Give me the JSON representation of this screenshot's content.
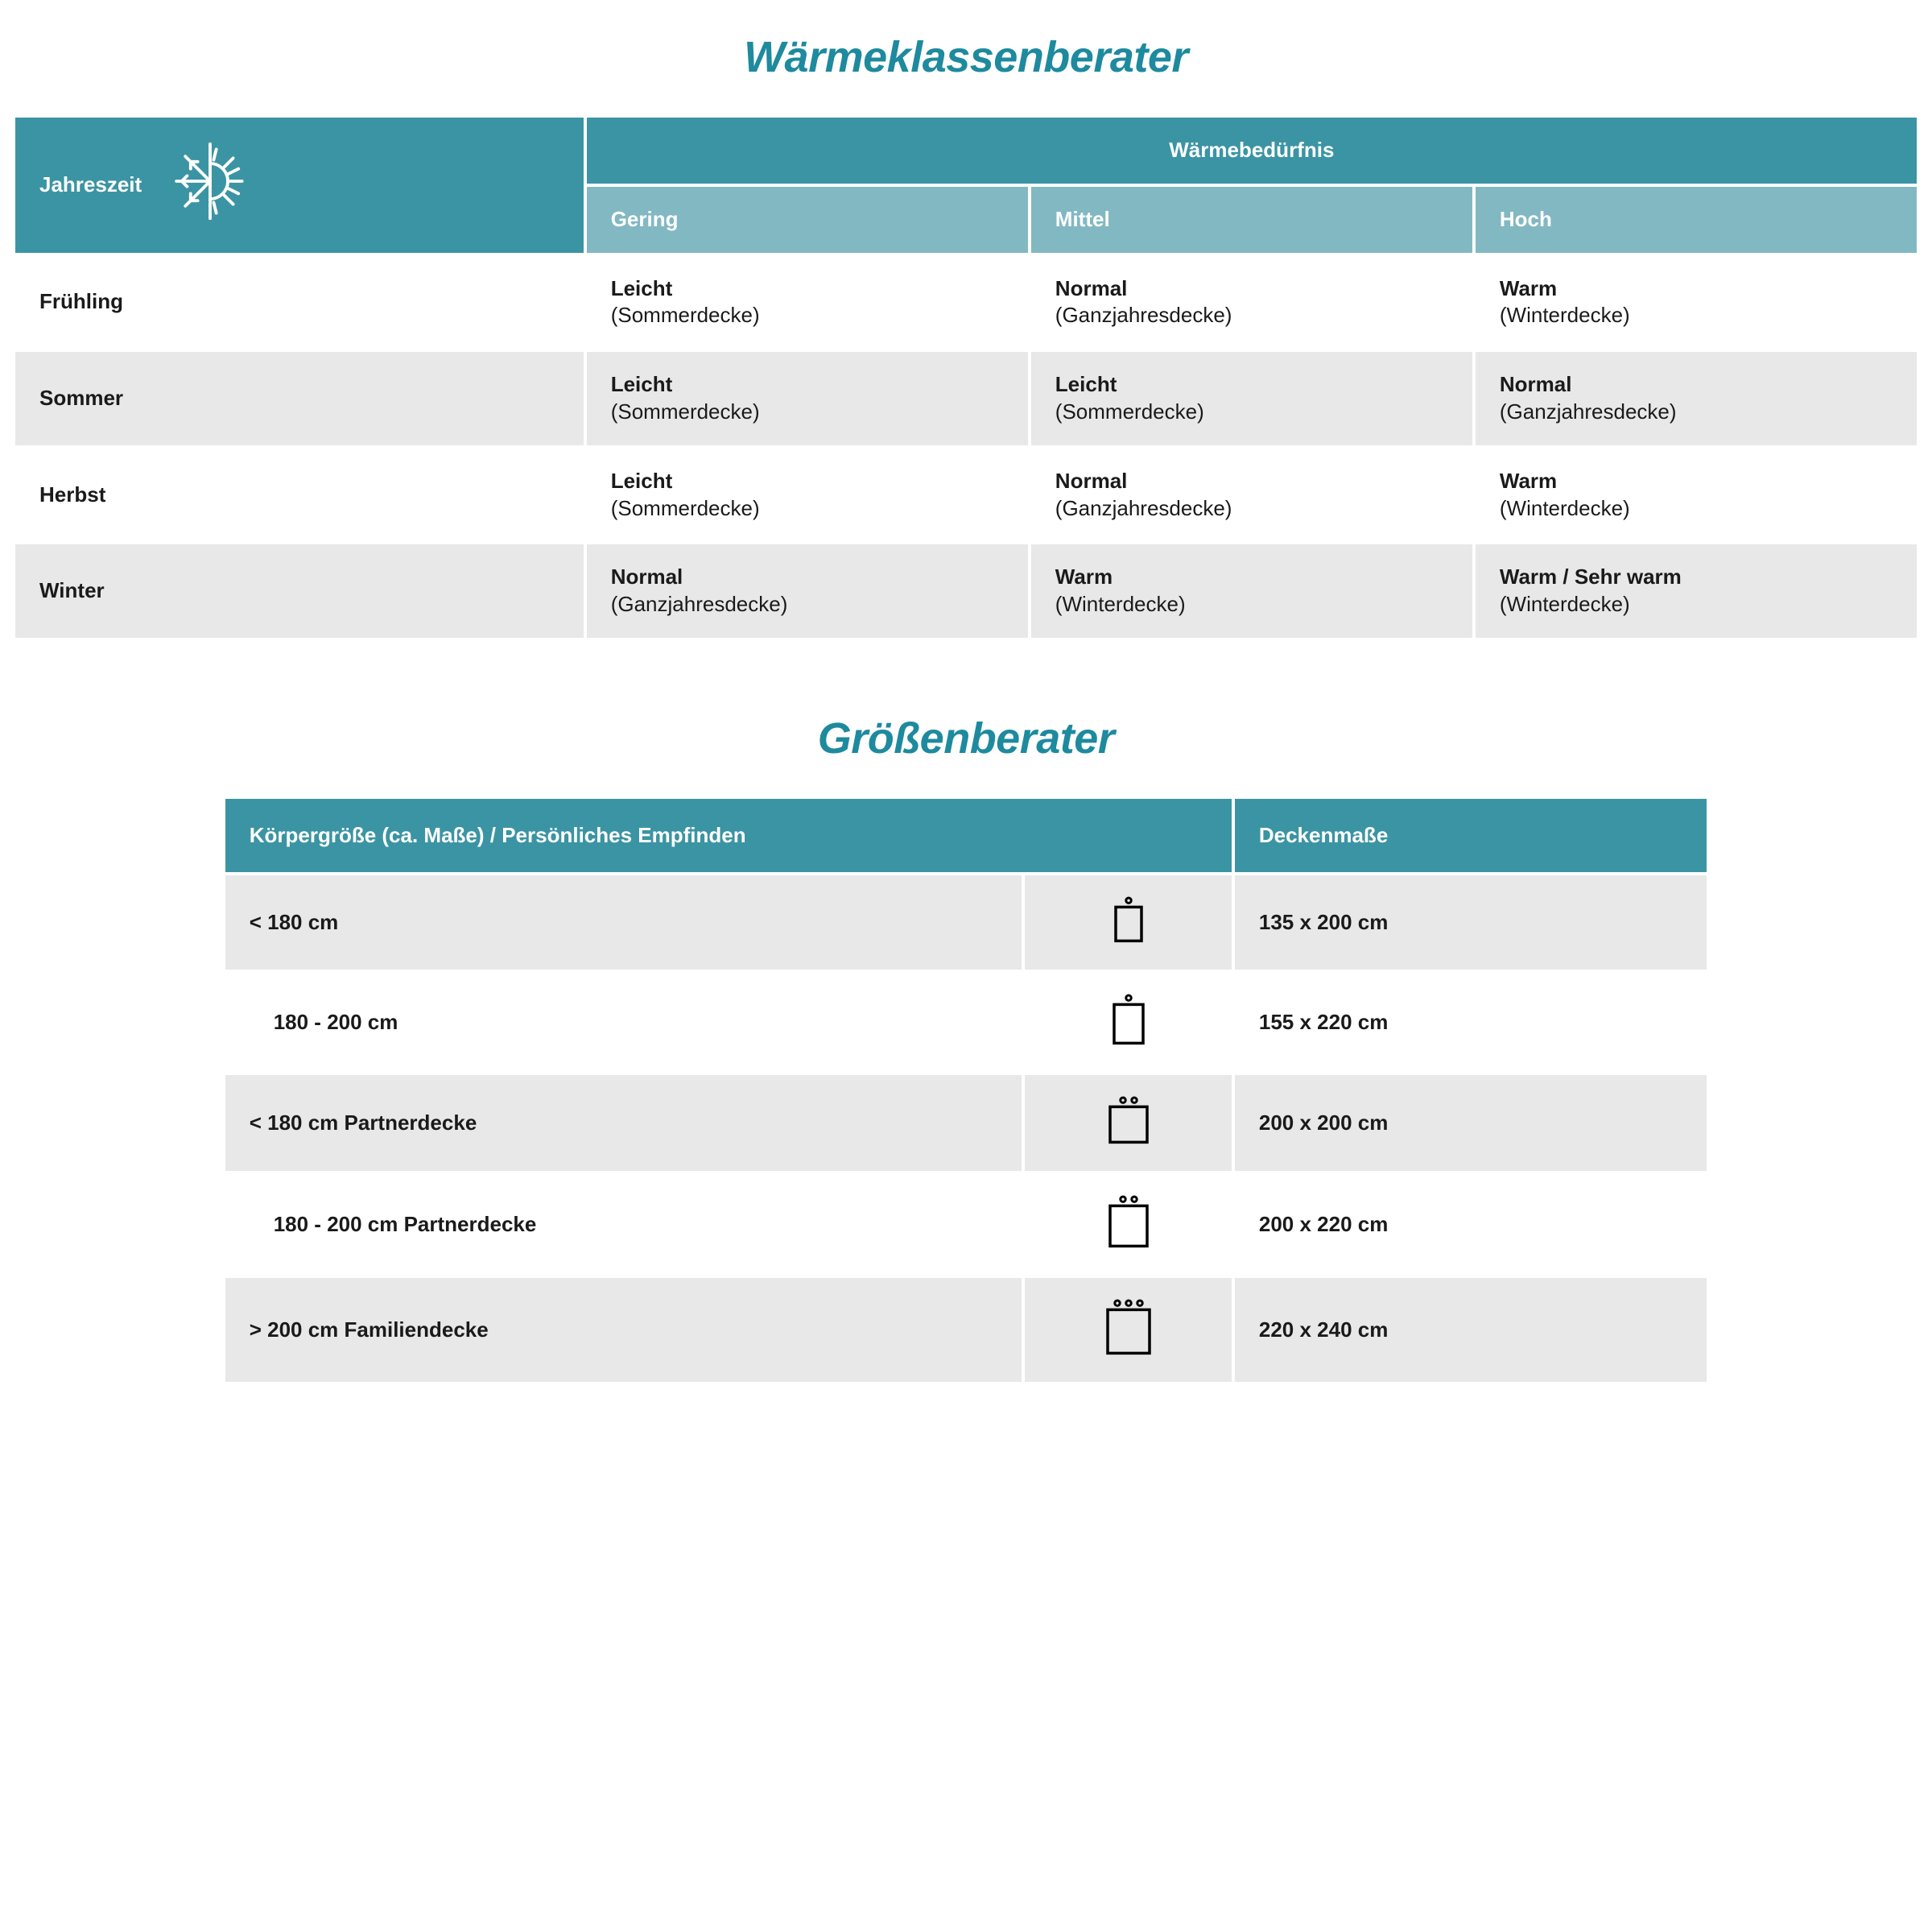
{
  "colors": {
    "title": "#1e8a9e",
    "header_dark": "#3b94a3",
    "header_light": "#82b8c2",
    "row_alt": "#e8e8e8",
    "row_plain": "#ffffff",
    "text": "#1a1a1a"
  },
  "warmth": {
    "title": "Wärmeklassenberater",
    "season_label": "Jahreszeit",
    "need_label": "Wärmebedürfnis",
    "levels": [
      "Gering",
      "Mittel",
      "Hoch"
    ],
    "rows": [
      {
        "season": "Frühling",
        "cells": [
          {
            "top": "Leicht",
            "sub": "(Sommerdecke)"
          },
          {
            "top": "Normal",
            "sub": "(Ganzjahresdecke)"
          },
          {
            "top": "Warm",
            "sub": "(Winterdecke)"
          }
        ]
      },
      {
        "season": "Sommer",
        "cells": [
          {
            "top": "Leicht",
            "sub": "(Sommerdecke)"
          },
          {
            "top": "Leicht",
            "sub": "(Sommerdecke)"
          },
          {
            "top": "Normal",
            "sub": "(Ganzjahresdecke)"
          }
        ]
      },
      {
        "season": "Herbst",
        "cells": [
          {
            "top": "Leicht",
            "sub": "(Sommerdecke)"
          },
          {
            "top": "Normal",
            "sub": "(Ganzjahresdecke)"
          },
          {
            "top": "Warm",
            "sub": "(Winterdecke)"
          }
        ]
      },
      {
        "season": "Winter",
        "cells": [
          {
            "top": "Normal",
            "sub": "(Ganzjahresdecke)"
          },
          {
            "top": "Warm",
            "sub": "(Winterdecke)"
          },
          {
            "top": "Warm / Sehr warm",
            "sub": "(Winterdecke)"
          }
        ]
      }
    ]
  },
  "size": {
    "title": "Größenberater",
    "col1": "Körpergröße (ca. Maße) / Persönliches Empfinden",
    "col2": "Deckenmaße",
    "rows": [
      {
        "label": "< 180 cm",
        "indent": false,
        "heads": 1,
        "w": 32,
        "h": 42,
        "meas": "135 x 200 cm"
      },
      {
        "label": "180 - 200 cm",
        "indent": true,
        "heads": 1,
        "w": 36,
        "h": 48,
        "meas": "155 x 220 cm"
      },
      {
        "label": "< 180 cm Partnerdecke",
        "indent": false,
        "heads": 2,
        "w": 46,
        "h": 44,
        "meas": "200 x 200 cm"
      },
      {
        "label": "180 - 200 cm Partnerdecke",
        "indent": true,
        "heads": 2,
        "w": 46,
        "h": 50,
        "meas": "200 x 220 cm"
      },
      {
        "label": "> 200 cm Familiendecke",
        "indent": false,
        "heads": 3,
        "w": 52,
        "h": 54,
        "meas": "220 x 240 cm"
      }
    ]
  }
}
